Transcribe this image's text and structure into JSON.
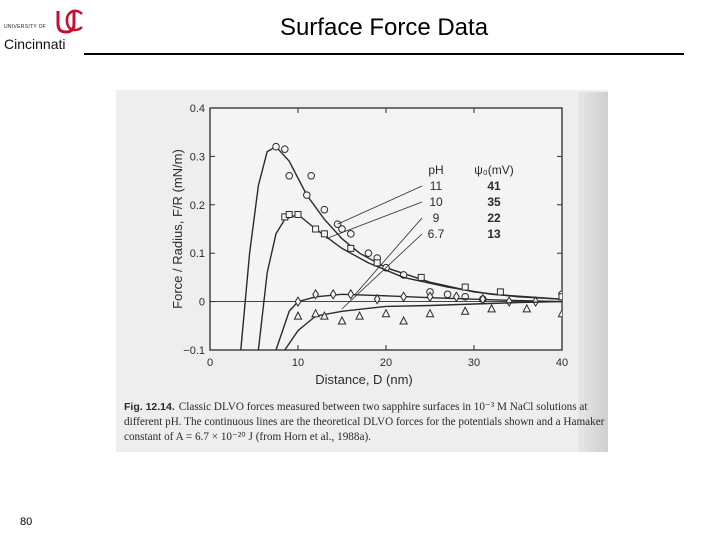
{
  "header": {
    "title": "Surface Force Data",
    "logo_small": "UNIVERSITY OF",
    "logo_name": "Cincinnati",
    "logo_mark": "UC"
  },
  "footer": {
    "page_number": "80"
  },
  "caption": {
    "figure_label": "Fig. 12.14.",
    "text": "Classic DLVO forces measured between two sapphire surfaces in 10⁻³ M NaCl solutions at different pH. The continuous lines are the theoretical DLVO forces for the potentials shown and a Hamaker constant of A = 6.7 × 10⁻²⁰ J (from Horn et al., 1988a)."
  },
  "colors": {
    "ink": "#2b2b2b",
    "scan_bg": "#eeeeee"
  },
  "chart_data": {
    "type": "line",
    "title": "",
    "xlabel": "Distance, D (nm)",
    "ylabel": "Force / Radius, F/R (mN/m)",
    "xlim": [
      0,
      40
    ],
    "ylim": [
      -0.1,
      0.4
    ],
    "x_ticks": [
      0,
      10,
      20,
      30,
      40
    ],
    "y_ticks": [
      -0.1,
      0,
      0.1,
      0.2,
      0.3,
      0.4
    ],
    "y_tick_labels": [
      "−0.1",
      "0",
      "0.1",
      "0.2",
      "0.3",
      "0.4"
    ],
    "grid": false,
    "legend": {
      "header_ph": "pH",
      "header_psi": "ψ₀(mV)",
      "rows": [
        {
          "ph": "11",
          "psi": "41"
        },
        {
          "ph": "10",
          "psi": "35"
        },
        {
          "ph": "9",
          "psi": "22"
        },
        {
          "ph": "6.7",
          "psi": "13"
        }
      ]
    },
    "series": [
      {
        "marker": "circle",
        "curve": [
          [
            3.5,
            -0.1
          ],
          [
            4.5,
            0.1
          ],
          [
            5.5,
            0.24
          ],
          [
            6.5,
            0.31
          ],
          [
            7.5,
            0.32
          ],
          [
            9,
            0.29
          ],
          [
            11,
            0.22
          ],
          [
            13,
            0.17
          ],
          [
            15,
            0.13
          ],
          [
            17,
            0.1
          ],
          [
            20,
            0.07
          ],
          [
            25,
            0.04
          ],
          [
            30,
            0.02
          ],
          [
            35,
            0.01
          ],
          [
            40,
            0.005
          ]
        ],
        "points": [
          [
            7.5,
            0.32
          ],
          [
            8.5,
            0.315
          ],
          [
            9,
            0.26
          ],
          [
            11,
            0.22
          ],
          [
            11.5,
            0.26
          ],
          [
            13,
            0.19
          ],
          [
            14.5,
            0.16
          ],
          [
            15,
            0.15
          ],
          [
            16,
            0.14
          ],
          [
            18,
            0.1
          ],
          [
            19,
            0.09
          ],
          [
            20,
            0.07
          ],
          [
            22,
            0.055
          ],
          [
            25,
            0.02
          ],
          [
            27,
            0.015
          ],
          [
            29,
            0.01
          ],
          [
            31,
            0.005
          ],
          [
            40,
            0.015
          ]
        ]
      },
      {
        "marker": "square",
        "curve": [
          [
            5.5,
            -0.1
          ],
          [
            6.5,
            0.06
          ],
          [
            7.5,
            0.14
          ],
          [
            8.5,
            0.17
          ],
          [
            10,
            0.18
          ],
          [
            12,
            0.15
          ],
          [
            15,
            0.11
          ],
          [
            18,
            0.08
          ],
          [
            22,
            0.05
          ],
          [
            27,
            0.03
          ],
          [
            32,
            0.015
          ],
          [
            40,
            0.005
          ]
        ],
        "points": [
          [
            8.5,
            0.175
          ],
          [
            9,
            0.18
          ],
          [
            10,
            0.18
          ],
          [
            12,
            0.15
          ],
          [
            13,
            0.14
          ],
          [
            16,
            0.11
          ],
          [
            19,
            0.08
          ],
          [
            24,
            0.05
          ],
          [
            29,
            0.03
          ],
          [
            33,
            0.02
          ],
          [
            40,
            0.01
          ]
        ]
      },
      {
        "marker": "diamond",
        "curve": [
          [
            7.5,
            -0.1
          ],
          [
            9,
            -0.02
          ],
          [
            10,
            0.0
          ],
          [
            12,
            0.01
          ],
          [
            15,
            0.015
          ],
          [
            20,
            0.012
          ],
          [
            25,
            0.008
          ],
          [
            30,
            0.005
          ],
          [
            35,
            0.002
          ],
          [
            40,
            0.0
          ]
        ],
        "points": [
          [
            10,
            0.0
          ],
          [
            12,
            0.015
          ],
          [
            14,
            0.015
          ],
          [
            16,
            0.015
          ],
          [
            19,
            0.005
          ],
          [
            22,
            0.01
          ],
          [
            25,
            0.01
          ],
          [
            28,
            0.01
          ],
          [
            31,
            0.005
          ],
          [
            34,
            0.0
          ],
          [
            37,
            0.0
          ]
        ]
      },
      {
        "marker": "triangle",
        "curve": [
          [
            8.5,
            -0.1
          ],
          [
            10,
            -0.06
          ],
          [
            12,
            -0.03
          ],
          [
            15,
            -0.02
          ],
          [
            20,
            -0.01
          ],
          [
            25,
            -0.008
          ],
          [
            30,
            -0.005
          ],
          [
            35,
            -0.002
          ],
          [
            40,
            0.0
          ]
        ],
        "points": [
          [
            10,
            -0.03
          ],
          [
            12,
            -0.025
          ],
          [
            13,
            -0.03
          ],
          [
            15,
            -0.04
          ],
          [
            17,
            -0.03
          ],
          [
            20,
            -0.025
          ],
          [
            22,
            -0.04
          ],
          [
            25,
            -0.025
          ],
          [
            29,
            -0.02
          ],
          [
            32,
            -0.015
          ],
          [
            36,
            -0.015
          ],
          [
            40,
            -0.025
          ]
        ]
      }
    ]
  }
}
